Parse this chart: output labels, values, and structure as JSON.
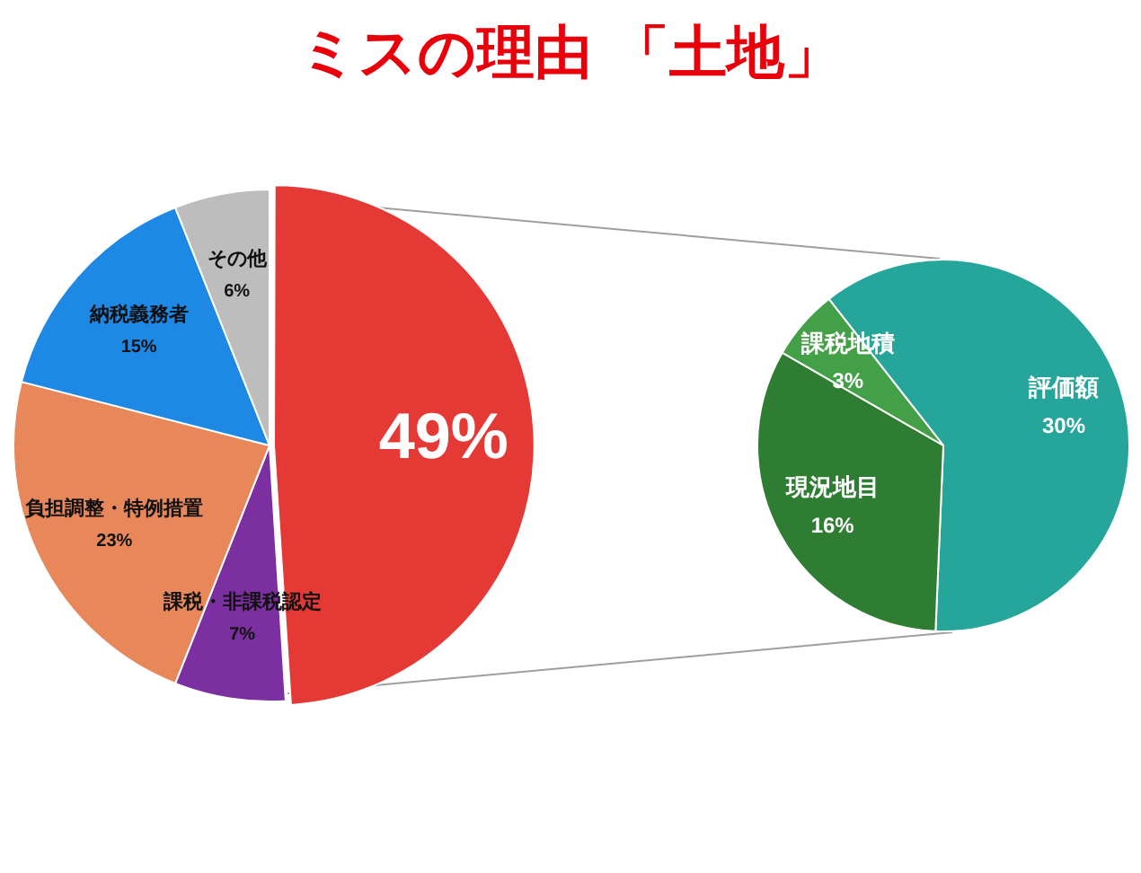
{
  "chart_data": [
    {
      "type": "pie",
      "title": "ミスの理由 「土地」",
      "categories": [
        null,
        "課税・非課税認定",
        "負担調整・特例措置",
        "納税義務者",
        "その他"
      ],
      "values": [
        49,
        7,
        23,
        15,
        6
      ],
      "colors": [
        "#e53935",
        "#7b2fa0",
        "#e8875a",
        "#1e88e5",
        "#bdbdbd"
      ],
      "value_labels": [
        "49%",
        "7%",
        "23%",
        "15%",
        "6%"
      ],
      "legend": false
    },
    {
      "type": "pie",
      "categories": [
        "評価額",
        "現況地目",
        "課税地積"
      ],
      "values": [
        30,
        16,
        3
      ],
      "colors": [
        "#26a69a",
        "#2e7d32",
        "#43a047"
      ],
      "value_labels": [
        "30%",
        "16%",
        "3%"
      ],
      "legend": false
    }
  ]
}
